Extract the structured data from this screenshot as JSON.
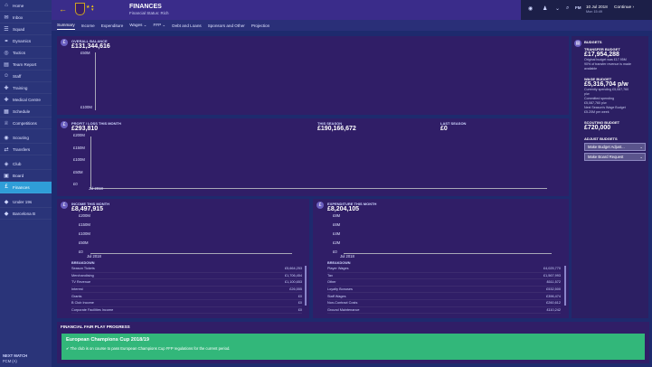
{
  "sidebar": {
    "items": [
      {
        "label": "Home",
        "icon": "home-icon",
        "glyph": "⌂"
      },
      {
        "label": "Inbox",
        "icon": "inbox-icon",
        "glyph": "✉"
      },
      {
        "label": "Squad",
        "icon": "squad-icon",
        "glyph": "☰"
      },
      {
        "label": "Dynamics",
        "icon": "dynamics-icon",
        "glyph": "⚭"
      },
      {
        "label": "Tactics",
        "icon": "tactics-icon",
        "glyph": "◎"
      },
      {
        "label": "Team Report",
        "icon": "report-icon",
        "glyph": "▤"
      },
      {
        "label": "Staff",
        "icon": "staff-icon",
        "glyph": "☺"
      },
      {
        "label": "Training",
        "icon": "training-icon",
        "glyph": "✚"
      },
      {
        "label": "Medical Centre",
        "icon": "medical-icon",
        "glyph": "✚"
      },
      {
        "label": "Schedule",
        "icon": "schedule-icon",
        "glyph": "▦"
      },
      {
        "label": "Competitions",
        "icon": "trophy-icon",
        "glyph": "♕"
      },
      {
        "label": "Scouting",
        "icon": "scouting-icon",
        "glyph": "◉"
      },
      {
        "label": "Transfers",
        "icon": "transfers-icon",
        "glyph": "⇄"
      },
      {
        "label": "Club",
        "icon": "club-icon",
        "glyph": "◈"
      },
      {
        "label": "Board",
        "icon": "board-icon",
        "glyph": "▣"
      },
      {
        "label": "Finances",
        "icon": "finances-icon",
        "glyph": "£"
      },
      {
        "label": "Under 19s",
        "icon": "under19-icon",
        "glyph": "◆"
      },
      {
        "label": "Barcelona B",
        "icon": "reserve-team-icon",
        "glyph": "◆"
      }
    ],
    "next_match_title": "NEXT MATCH",
    "next_match_value": "FCM (A)"
  },
  "header": {
    "title": "FINANCES",
    "subtitle": "Financial Status: Rich",
    "date": "10 Jul 2018",
    "time": "Mon 15:49",
    "continue_label": "Continue"
  },
  "tabs": [
    "Summary",
    "Income",
    "Expenditure",
    "Wages ⌄",
    "FFP ⌄",
    "Debt and Loans",
    "Sponsors and Other",
    "Projection"
  ],
  "overall": {
    "label": "OVERALL BALANCE",
    "value": "£131,344,616",
    "top_axis": "£50M",
    "bottom_axis": "£100M"
  },
  "profit": {
    "label": "PROFIT / LOSS THIS MONTH",
    "value": "£293,810",
    "season_label": "THIS SEASON",
    "season_value": "£190,166,672",
    "last_label": "LAST SEASON",
    "last_value": "£0",
    "axis": [
      "£200M",
      "£150M",
      "£100M",
      "£50M",
      "£0"
    ],
    "x_label": "Jul 2018"
  },
  "income": {
    "label": "INCOME THIS MONTH",
    "value": "£8,497,915",
    "axis": [
      "£200M",
      "£150M",
      "£100M",
      "£50M",
      "£0"
    ],
    "x_label": "Jul 2018",
    "breakdown_label": "BREAKDOWN",
    "rows": [
      {
        "name": "Season Tickets",
        "value": "£5,664,253"
      },
      {
        "name": "Merchandising",
        "value": "£1,706,454"
      },
      {
        "name": "TV Revenue",
        "value": "£1,100,653"
      },
      {
        "name": "Interest",
        "value": "£26,555"
      },
      {
        "name": "Grants",
        "value": "£0"
      },
      {
        "name": "B Club Income",
        "value": "£0"
      },
      {
        "name": "Corporate Facilities Income",
        "value": "£0"
      }
    ]
  },
  "expenditure": {
    "label": "EXPENDITURE THIS MONTH",
    "value": "£8,204,105",
    "axis": [
      "£8M",
      "£6M",
      "£4M",
      "£2M",
      "£0"
    ],
    "x_label": "Jul 2018",
    "breakdown_label": "BREAKDOWN",
    "rows": [
      {
        "name": "Player Wages",
        "value": "£4,025,770"
      },
      {
        "name": "Tax",
        "value": "£1,567,993"
      },
      {
        "name": "Other",
        "value": "£611,572"
      },
      {
        "name": "Loyalty Bonuses",
        "value": "£532,500"
      },
      {
        "name": "Staff Wages",
        "value": "£396,474"
      },
      {
        "name": "Non-Contract Costs",
        "value": "£260,612"
      },
      {
        "name": "Ground Maintenance",
        "value": "£110,242"
      }
    ]
  },
  "budgets": {
    "title": "BUDGETS",
    "transfer_label": "TRANSFER BUDGET",
    "transfer_value": "£17,954,288",
    "transfer_text": [
      "Original budget was £17.95M",
      "90% of transfer revenue is made",
      "available"
    ],
    "wage_label": "WAGE BUDGET",
    "wage_value": "£5,316,704 p/w",
    "wage_text": [
      "Currently spending £5,087,760",
      "p/w",
      "Committed spending",
      "£5,087,760 p/w",
      "Next Season's Wage Budget",
      "£5.20M per week"
    ],
    "scouting_label": "SCOUTING BUDGET",
    "scouting_value": "£720,000",
    "adjust_label": "ADJUST BUDGETS",
    "adjust_button": "Make Budget Adjust...",
    "board_button": "Make Board Request"
  },
  "ffp": {
    "title": "FINANCIAL FAIR PLAY PROGRESS",
    "competition": "European Champions Cup 2018/19",
    "message": "The club is on course to pass European Champions Cup FFP regulations for the current period."
  }
}
